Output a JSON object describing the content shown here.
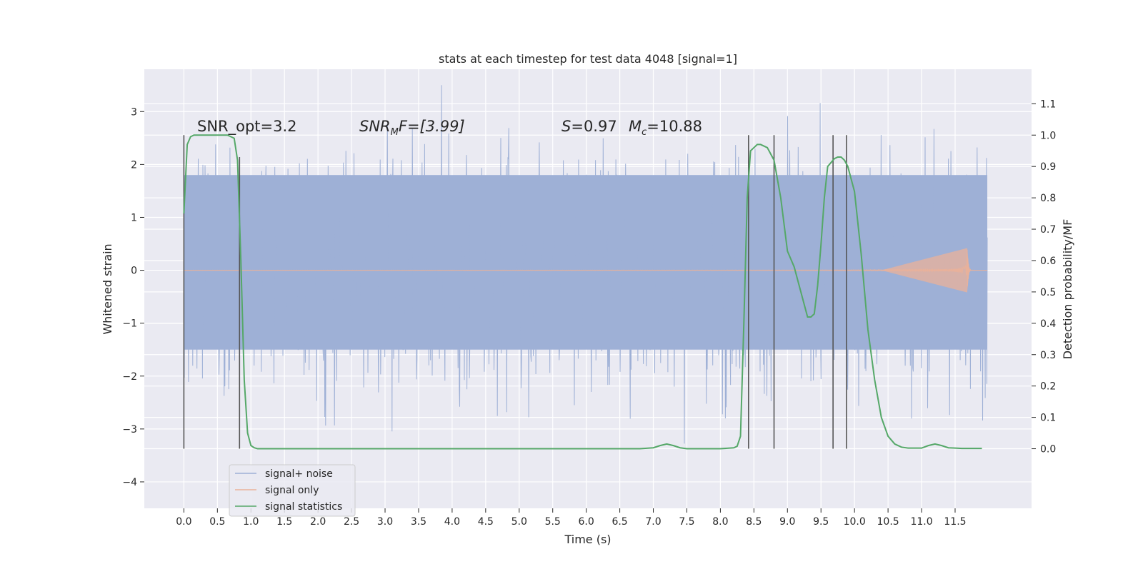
{
  "chart_data": {
    "type": "line",
    "title": "stats at each timestep for test data 4048 [signal=1]",
    "xlabel": "Time (s)",
    "ylabel": "Whitened strain",
    "y2label": "Detection probability/MF",
    "xlim": [
      -0.59,
      12.64
    ],
    "ylim": [
      -4.5,
      3.8
    ],
    "y2lim": [
      -0.19,
      1.21
    ],
    "x_ticks": [
      "0.0",
      "0.5",
      "1.0",
      "1.5",
      "2.0",
      "2.5",
      "3.0",
      "3.5",
      "4.0",
      "4.5",
      "5.0",
      "5.5",
      "6.0",
      "6.5",
      "7.0",
      "7.5",
      "8.0",
      "8.5",
      "9.0",
      "9.5",
      "10.0",
      "10.5",
      "11.0",
      "11.5"
    ],
    "y_ticks": [
      "3",
      "2",
      "1",
      "0",
      "−1",
      "−2",
      "−3",
      "−4"
    ],
    "y2_ticks": [
      "1.1",
      "1.0",
      "0.9",
      "0.8",
      "0.7",
      "0.6",
      "0.5",
      "0.4",
      "0.3",
      "0.2",
      "0.1",
      "0.0"
    ],
    "grid": true,
    "legend": {
      "placement": "lower-left",
      "entries": [
        {
          "label": "signal+ noise",
          "color": "#9eb0d6"
        },
        {
          "label": "signal only",
          "color": "#e9b19a"
        },
        {
          "label": "signal statistics",
          "color": "#55a868"
        }
      ]
    },
    "annotations": {
      "snr_opt": "SNR_opt=3.2",
      "snr_mf_prefix": "SNR",
      "snr_mf_sub": "M",
      "snr_mf_rest": "F=[3.99]",
      "s_stat_prefix": "S",
      "s_stat_rest": "=0.97",
      "mc_prefix": "M",
      "mc_sub": "c",
      "mc_rest": "=10.88"
    },
    "noise_series": {
      "name": "signal+ noise",
      "x_range": [
        0.0,
        11.98
      ],
      "core_band": [
        -1.5,
        1.8
      ],
      "typical_upper": 2.7,
      "typical_lower": -2.8,
      "max": 3.5,
      "min": -4.1
    },
    "signal_only": {
      "name": "signal only",
      "x_range": [
        0.0,
        11.98
      ],
      "merger_time": 11.68,
      "peak_amplitude": 0.42
    },
    "signal_statistics": {
      "name": "signal statistics",
      "x": [
        0.0,
        0.05,
        0.1,
        0.15,
        0.2,
        0.3,
        0.5,
        0.65,
        0.75,
        0.8,
        0.85,
        0.9,
        0.95,
        1.0,
        1.05,
        1.1,
        1.3,
        2.0,
        3.0,
        4.0,
        5.0,
        6.0,
        6.8,
        7.0,
        7.1,
        7.2,
        7.3,
        7.4,
        7.5,
        8.0,
        8.2,
        8.25,
        8.3,
        8.35,
        8.4,
        8.45,
        8.5,
        8.55,
        8.6,
        8.7,
        8.8,
        8.9,
        9.0,
        9.1,
        9.2,
        9.3,
        9.35,
        9.4,
        9.45,
        9.5,
        9.55,
        9.6,
        9.7,
        9.75,
        9.8,
        9.85,
        9.9,
        10.0,
        10.1,
        10.2,
        10.3,
        10.4,
        10.5,
        10.6,
        10.7,
        10.8,
        11.0,
        11.1,
        11.2,
        11.3,
        11.4,
        11.5,
        11.6,
        11.7,
        11.9
      ],
      "y": [
        0.75,
        0.97,
        0.995,
        1.0,
        1.0,
        1.0,
        1.0,
        1.0,
        0.99,
        0.92,
        0.6,
        0.22,
        0.05,
        0.01,
        0.003,
        0.0,
        0.0,
        0.0,
        0.0,
        0.0,
        0.0,
        0.0,
        0.0,
        0.003,
        0.01,
        0.015,
        0.01,
        0.003,
        0.0,
        0.0,
        0.003,
        0.008,
        0.04,
        0.4,
        0.8,
        0.95,
        0.96,
        0.97,
        0.97,
        0.96,
        0.92,
        0.8,
        0.63,
        0.58,
        0.5,
        0.42,
        0.42,
        0.43,
        0.52,
        0.65,
        0.8,
        0.9,
        0.925,
        0.93,
        0.93,
        0.92,
        0.9,
        0.82,
        0.62,
        0.38,
        0.22,
        0.1,
        0.04,
        0.015,
        0.005,
        0.002,
        0.002,
        0.01,
        0.015,
        0.01,
        0.003,
        0.002,
        0.001,
        0.001,
        0.001
      ]
    },
    "event_markers": {
      "description_color": "#555555",
      "times": [
        0.0,
        0.83,
        8.42,
        8.8,
        9.68,
        9.88
      ],
      "y_top": [
        1.0,
        0.93,
        1.0,
        1.0,
        1.0,
        1.0
      ],
      "y_bottom": 0.0
    }
  }
}
